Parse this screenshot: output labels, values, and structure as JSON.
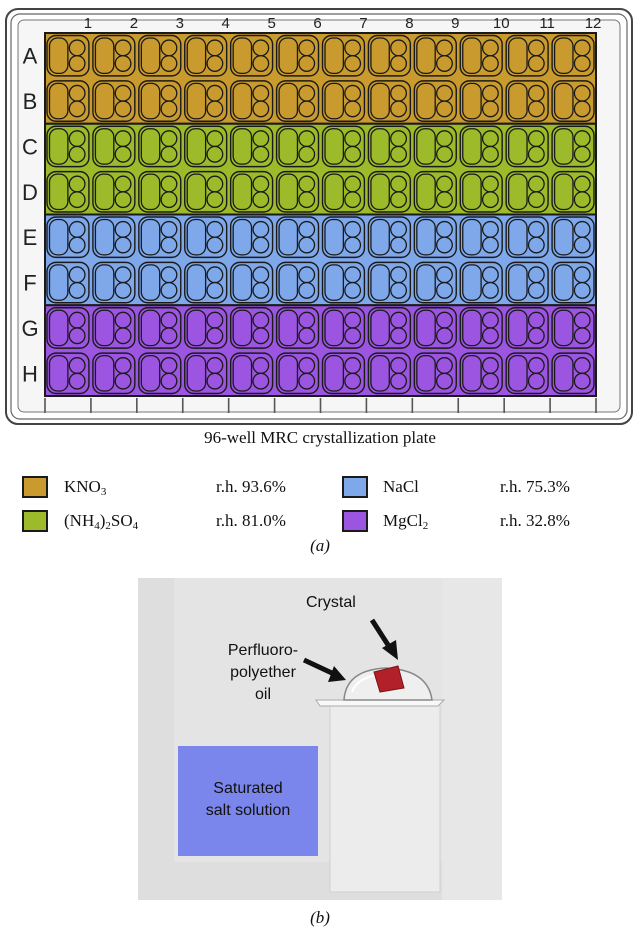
{
  "plate": {
    "caption": "96-well MRC crystallization plate",
    "columns": [
      "1",
      "2",
      "3",
      "4",
      "5",
      "6",
      "7",
      "8",
      "9",
      "10",
      "11",
      "12"
    ],
    "rows": [
      "A",
      "B",
      "C",
      "D",
      "E",
      "F",
      "G",
      "H"
    ],
    "row_fill": {
      "A": "#c99a2e",
      "B": "#c99a2e",
      "C": "#9dba2a",
      "D": "#9dba2a",
      "E": "#7ea8ea",
      "F": "#7ea8ea",
      "G": "#9c55e0",
      "H": "#9c55e0"
    }
  },
  "legend": [
    {
      "salt_parts": [
        [
          "KNO",
          ""
        ],
        [
          "3",
          "sub"
        ]
      ],
      "rh": "r.h. 93.6%",
      "color": "#c99a2e"
    },
    {
      "salt_parts": [
        [
          "NaCl",
          ""
        ]
      ],
      "rh": "r.h. 75.3%",
      "color": "#7ea8ea"
    },
    {
      "salt_parts": [
        [
          "(NH",
          ""
        ],
        [
          "4",
          "sub"
        ],
        [
          ")",
          ""
        ],
        [
          "2",
          "sub"
        ],
        [
          "SO",
          ""
        ],
        [
          "4",
          "sub"
        ]
      ],
      "rh": "r.h. 81.0%",
      "color": "#9dba2a"
    },
    {
      "salt_parts": [
        [
          "MgCl",
          ""
        ],
        [
          "2",
          "sub"
        ]
      ],
      "rh": "r.h. 32.8%",
      "color": "#9c55e0"
    }
  ],
  "panel_labels": {
    "a": "(a)",
    "b": "(b)"
  },
  "panel_b": {
    "crystal_label": "Crystal",
    "oil_label_lines": [
      "Perfluoro-",
      "polyether",
      "oil"
    ],
    "salt_label_lines": [
      "Saturated",
      "salt solution"
    ],
    "colors": {
      "chamber": "#dcdcdc",
      "salt": "#7b86ec",
      "crystal": "#b2202a",
      "pedestal": "#e8e8e8"
    }
  }
}
